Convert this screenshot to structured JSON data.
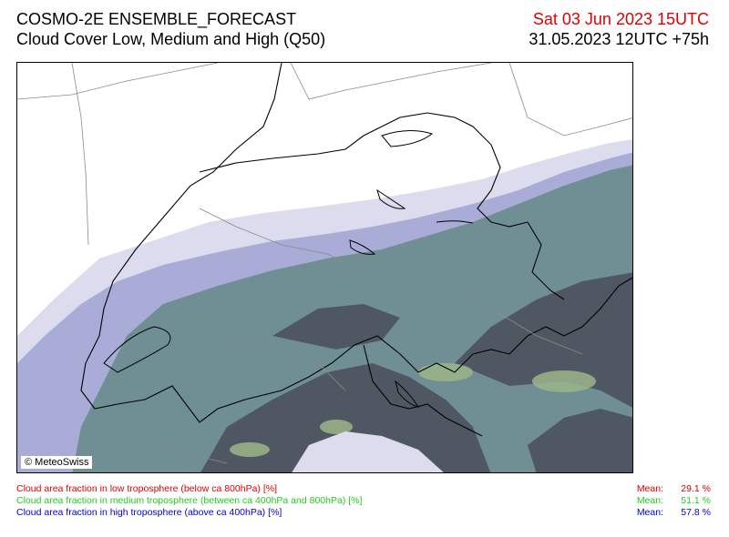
{
  "header": {
    "model": "COSMO-2E ENSEMBLE_FORECAST",
    "product": "Cloud Cover Low, Medium and High (Q50)",
    "valid_time": "Sat 03 Jun 2023 15UTC",
    "run_time": "31.05.2023 12UTC +75h"
  },
  "map": {
    "copyright": "© MeteoSwiss"
  },
  "legend": [
    {
      "label": "Cloud area fraction in low troposphere (below ca 800hPa) [%]",
      "mean_label": "Mean:",
      "mean_value": "29.1 %",
      "color": "#e00000"
    },
    {
      "label": "Cloud area fraction in medium troposphere (between ca 400hPa and 800hPa) [%]",
      "mean_label": "Mean:",
      "mean_value": "51.1 %",
      "color": "#22cc22"
    },
    {
      "label": "Cloud area fraction in high troposphere (above ca 400hPa) [%]",
      "mean_label": "Mean:",
      "mean_value": "57.8 %",
      "color": "#0000e0"
    }
  ],
  "colors": {
    "cloud_high": "#a9acd6",
    "cloud_high_light": "#dcdcee",
    "cloud_mixed": "#708f95",
    "cloud_dense": "#4f5862",
    "cloud_green": "#9cb58a"
  }
}
